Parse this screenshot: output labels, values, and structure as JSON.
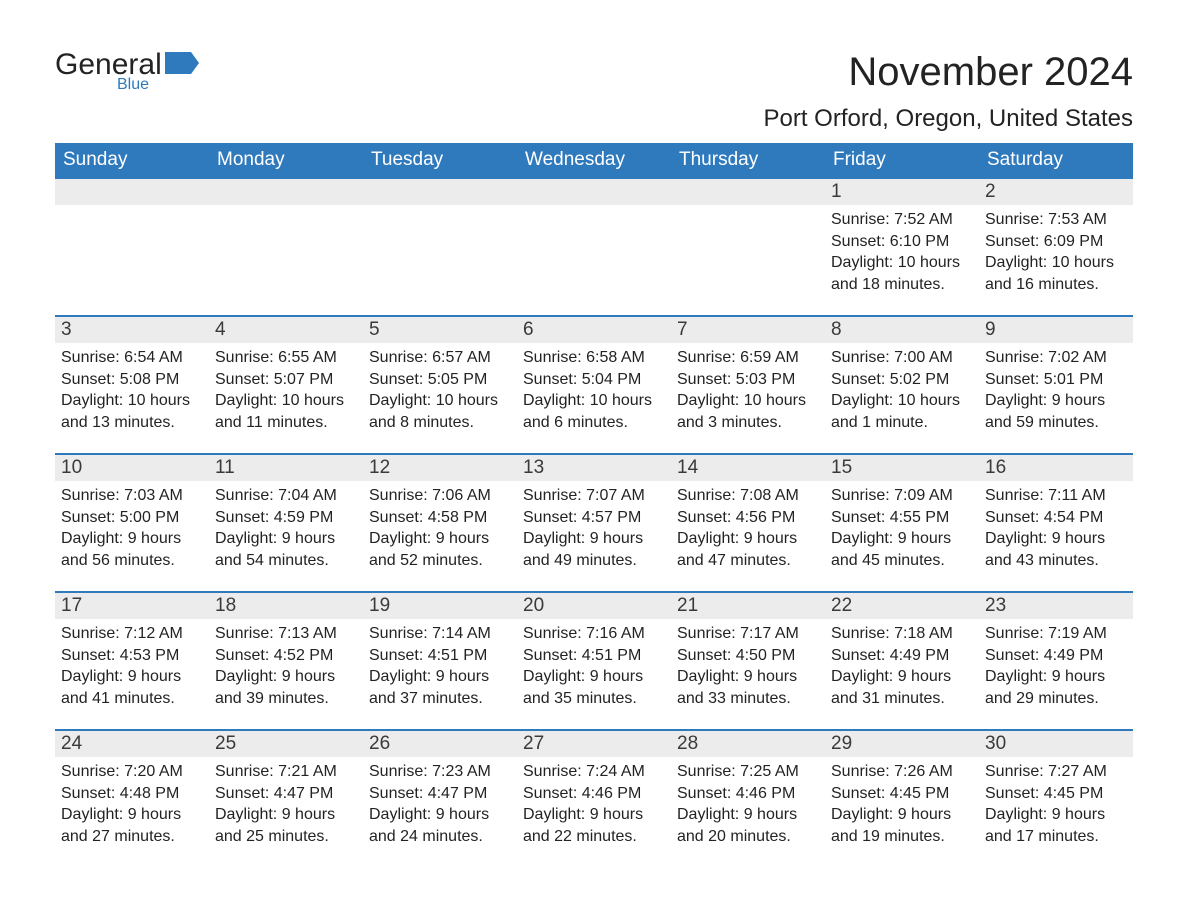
{
  "logo": {
    "word1": "General",
    "word2": "Blue",
    "flag_color": "#2f79bd"
  },
  "title": "November 2024",
  "location": "Port Orford, Oregon, United States",
  "colors": {
    "header_bg": "#2f79bd",
    "header_text": "#ffffff",
    "day_num_bg": "#ececec",
    "text": "#232323",
    "row_border": "#2f79bd",
    "page_bg": "#ffffff"
  },
  "fonts": {
    "title_pt": 40,
    "location_pt": 24,
    "dayhead_pt": 19,
    "daynum_pt": 19,
    "body_pt": 16
  },
  "day_headers": [
    "Sunday",
    "Monday",
    "Tuesday",
    "Wednesday",
    "Thursday",
    "Friday",
    "Saturday"
  ],
  "weeks": [
    [
      null,
      null,
      null,
      null,
      null,
      {
        "n": "1",
        "sunrise": "Sunrise: 7:52 AM",
        "sunset": "Sunset: 6:10 PM",
        "daylight": "Daylight: 10 hours and 18 minutes."
      },
      {
        "n": "2",
        "sunrise": "Sunrise: 7:53 AM",
        "sunset": "Sunset: 6:09 PM",
        "daylight": "Daylight: 10 hours and 16 minutes."
      }
    ],
    [
      {
        "n": "3",
        "sunrise": "Sunrise: 6:54 AM",
        "sunset": "Sunset: 5:08 PM",
        "daylight": "Daylight: 10 hours and 13 minutes."
      },
      {
        "n": "4",
        "sunrise": "Sunrise: 6:55 AM",
        "sunset": "Sunset: 5:07 PM",
        "daylight": "Daylight: 10 hours and 11 minutes."
      },
      {
        "n": "5",
        "sunrise": "Sunrise: 6:57 AM",
        "sunset": "Sunset: 5:05 PM",
        "daylight": "Daylight: 10 hours and 8 minutes."
      },
      {
        "n": "6",
        "sunrise": "Sunrise: 6:58 AM",
        "sunset": "Sunset: 5:04 PM",
        "daylight": "Daylight: 10 hours and 6 minutes."
      },
      {
        "n": "7",
        "sunrise": "Sunrise: 6:59 AM",
        "sunset": "Sunset: 5:03 PM",
        "daylight": "Daylight: 10 hours and 3 minutes."
      },
      {
        "n": "8",
        "sunrise": "Sunrise: 7:00 AM",
        "sunset": "Sunset: 5:02 PM",
        "daylight": "Daylight: 10 hours and 1 minute."
      },
      {
        "n": "9",
        "sunrise": "Sunrise: 7:02 AM",
        "sunset": "Sunset: 5:01 PM",
        "daylight": "Daylight: 9 hours and 59 minutes."
      }
    ],
    [
      {
        "n": "10",
        "sunrise": "Sunrise: 7:03 AM",
        "sunset": "Sunset: 5:00 PM",
        "daylight": "Daylight: 9 hours and 56 minutes."
      },
      {
        "n": "11",
        "sunrise": "Sunrise: 7:04 AM",
        "sunset": "Sunset: 4:59 PM",
        "daylight": "Daylight: 9 hours and 54 minutes."
      },
      {
        "n": "12",
        "sunrise": "Sunrise: 7:06 AM",
        "sunset": "Sunset: 4:58 PM",
        "daylight": "Daylight: 9 hours and 52 minutes."
      },
      {
        "n": "13",
        "sunrise": "Sunrise: 7:07 AM",
        "sunset": "Sunset: 4:57 PM",
        "daylight": "Daylight: 9 hours and 49 minutes."
      },
      {
        "n": "14",
        "sunrise": "Sunrise: 7:08 AM",
        "sunset": "Sunset: 4:56 PM",
        "daylight": "Daylight: 9 hours and 47 minutes."
      },
      {
        "n": "15",
        "sunrise": "Sunrise: 7:09 AM",
        "sunset": "Sunset: 4:55 PM",
        "daylight": "Daylight: 9 hours and 45 minutes."
      },
      {
        "n": "16",
        "sunrise": "Sunrise: 7:11 AM",
        "sunset": "Sunset: 4:54 PM",
        "daylight": "Daylight: 9 hours and 43 minutes."
      }
    ],
    [
      {
        "n": "17",
        "sunrise": "Sunrise: 7:12 AM",
        "sunset": "Sunset: 4:53 PM",
        "daylight": "Daylight: 9 hours and 41 minutes."
      },
      {
        "n": "18",
        "sunrise": "Sunrise: 7:13 AM",
        "sunset": "Sunset: 4:52 PM",
        "daylight": "Daylight: 9 hours and 39 minutes."
      },
      {
        "n": "19",
        "sunrise": "Sunrise: 7:14 AM",
        "sunset": "Sunset: 4:51 PM",
        "daylight": "Daylight: 9 hours and 37 minutes."
      },
      {
        "n": "20",
        "sunrise": "Sunrise: 7:16 AM",
        "sunset": "Sunset: 4:51 PM",
        "daylight": "Daylight: 9 hours and 35 minutes."
      },
      {
        "n": "21",
        "sunrise": "Sunrise: 7:17 AM",
        "sunset": "Sunset: 4:50 PM",
        "daylight": "Daylight: 9 hours and 33 minutes."
      },
      {
        "n": "22",
        "sunrise": "Sunrise: 7:18 AM",
        "sunset": "Sunset: 4:49 PM",
        "daylight": "Daylight: 9 hours and 31 minutes."
      },
      {
        "n": "23",
        "sunrise": "Sunrise: 7:19 AM",
        "sunset": "Sunset: 4:49 PM",
        "daylight": "Daylight: 9 hours and 29 minutes."
      }
    ],
    [
      {
        "n": "24",
        "sunrise": "Sunrise: 7:20 AM",
        "sunset": "Sunset: 4:48 PM",
        "daylight": "Daylight: 9 hours and 27 minutes."
      },
      {
        "n": "25",
        "sunrise": "Sunrise: 7:21 AM",
        "sunset": "Sunset: 4:47 PM",
        "daylight": "Daylight: 9 hours and 25 minutes."
      },
      {
        "n": "26",
        "sunrise": "Sunrise: 7:23 AM",
        "sunset": "Sunset: 4:47 PM",
        "daylight": "Daylight: 9 hours and 24 minutes."
      },
      {
        "n": "27",
        "sunrise": "Sunrise: 7:24 AM",
        "sunset": "Sunset: 4:46 PM",
        "daylight": "Daylight: 9 hours and 22 minutes."
      },
      {
        "n": "28",
        "sunrise": "Sunrise: 7:25 AM",
        "sunset": "Sunset: 4:46 PM",
        "daylight": "Daylight: 9 hours and 20 minutes."
      },
      {
        "n": "29",
        "sunrise": "Sunrise: 7:26 AM",
        "sunset": "Sunset: 4:45 PM",
        "daylight": "Daylight: 9 hours and 19 minutes."
      },
      {
        "n": "30",
        "sunrise": "Sunrise: 7:27 AM",
        "sunset": "Sunset: 4:45 PM",
        "daylight": "Daylight: 9 hours and 17 minutes."
      }
    ]
  ]
}
